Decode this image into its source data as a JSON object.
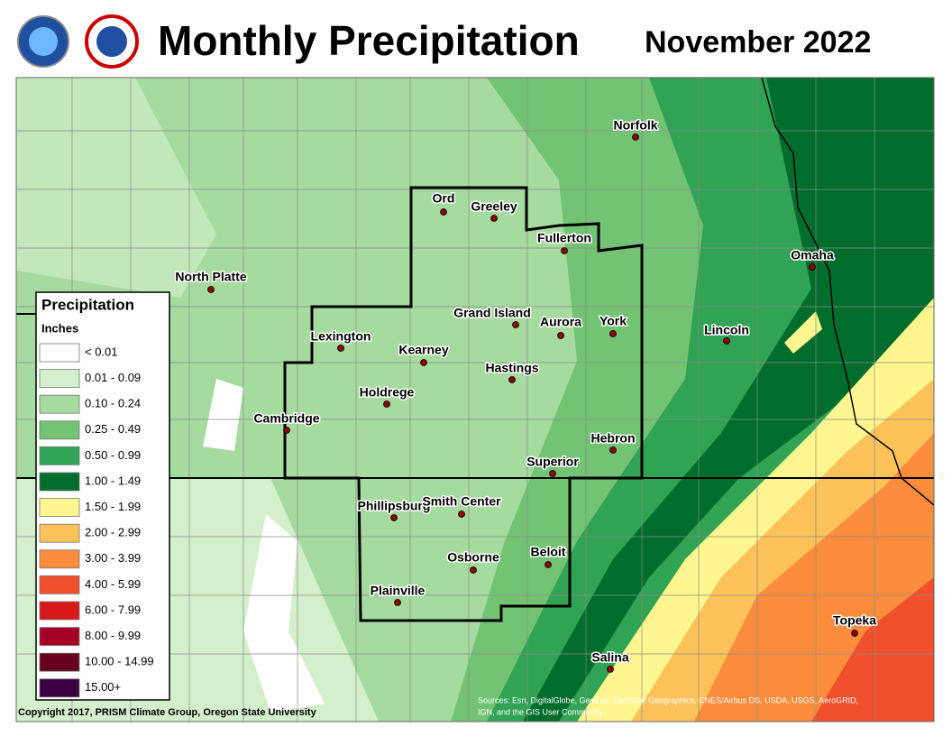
{
  "header": {
    "title": "Monthly Precipitation",
    "period": "November 2022"
  },
  "legend": {
    "title": "Precipitation",
    "units": "Inches",
    "entries": [
      {
        "label": "< 0.01",
        "color": "#ffffff"
      },
      {
        "label": "0.01 - 0.09",
        "color": "#d4efcc"
      },
      {
        "label": "0.10 - 0.24",
        "color": "#a6db9f"
      },
      {
        "label": "0.25 - 0.49",
        "color": "#73c374"
      },
      {
        "label": "0.50 - 0.99",
        "color": "#31a354"
      },
      {
        "label": "1.00 - 1.49",
        "color": "#006d2c"
      },
      {
        "label": "1.50 - 1.99",
        "color": "#fff68f"
      },
      {
        "label": "2.00 - 2.99",
        "color": "#fdc35a"
      },
      {
        "label": "3.00 - 3.99",
        "color": "#fc8d3c"
      },
      {
        "label": "4.00 - 5.99",
        "color": "#f0502b"
      },
      {
        "label": "6.00 - 7.99",
        "color": "#d7191c"
      },
      {
        "label": "8.00 - 9.99",
        "color": "#a50026"
      },
      {
        "label": "10.00 - 14.99",
        "color": "#67001f"
      },
      {
        "label": "15.00+",
        "color": "#3b0040"
      }
    ]
  },
  "cities": [
    "Norfolk",
    "Ord",
    "Greeley",
    "Fullerton",
    "Omaha",
    "North Platte",
    "Grand Island",
    "Aurora",
    "York",
    "Lincoln",
    "Lexington",
    "Kearney",
    "Hastings",
    "Holdrege",
    "Cambridge",
    "Hebron",
    "Superior",
    "Phillipsburg",
    "Smith Center",
    "Beloit",
    "Osborne",
    "Plainville",
    "Topeka",
    "Salina"
  ],
  "credits": {
    "copyright": "Copyright 2017, PRISM Climate Group, Oregon State University",
    "sources": [
      "Sources: Esri, DigitalGlobe, GeoEye, Earthstar Geographics, CNES/Airbus DS, USDA, USGS, AeroGRID,",
      "IGN, and the GIS User Community"
    ]
  }
}
